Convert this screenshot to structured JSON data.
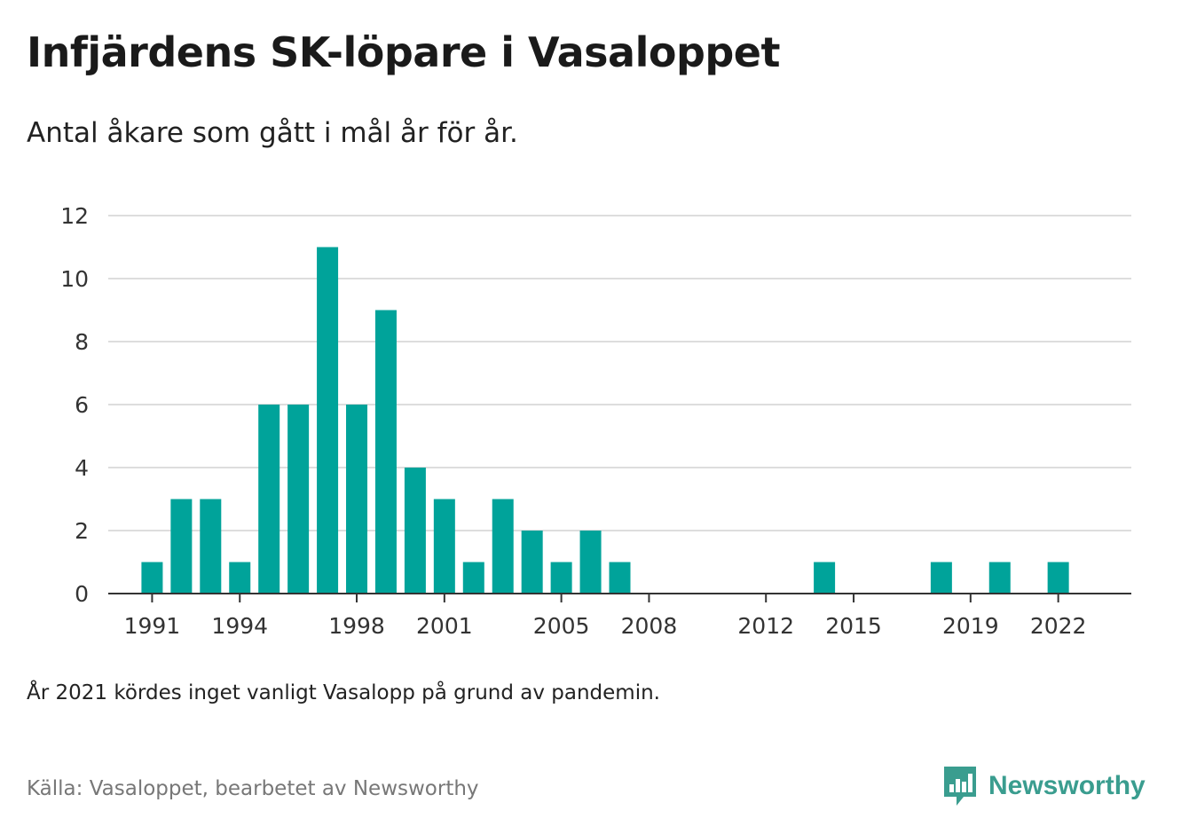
{
  "title": "Infjärdens SK-löpare i Vasaloppet",
  "subtitle": "Antal åkare som gått i mål år för år.",
  "note": "År 2021 kördes inget vanligt Vasalopp på grund av pandemin.",
  "source": "Källa: Vasaloppet, bearbetet av Newsworthy",
  "brand": {
    "name": "Newsworthy",
    "icon": "newsworthy-logo-icon",
    "color": "#3a9d8f"
  },
  "colors": {
    "bar": "#00a39a",
    "grid": "#dddddd",
    "axis": "#333333"
  },
  "chart_data": {
    "type": "bar",
    "title": "Infjärdens SK-löpare i Vasaloppet",
    "xlabel": "",
    "ylabel": "",
    "ylim": [
      0,
      12
    ],
    "yticks": [
      0,
      2,
      4,
      6,
      8,
      10,
      12
    ],
    "xlim": [
      1989.5,
      2024.5
    ],
    "xticks": [
      1991,
      1994,
      1998,
      2001,
      2005,
      2008,
      2012,
      2015,
      2019,
      2022
    ],
    "grid": true,
    "legend": "none",
    "x": [
      1991,
      1992,
      1993,
      1994,
      1995,
      1996,
      1997,
      1998,
      1999,
      2000,
      2001,
      2002,
      2003,
      2004,
      2005,
      2006,
      2007,
      2014,
      2018,
      2020,
      2022
    ],
    "values": [
      1,
      3,
      3,
      1,
      6,
      6,
      11,
      6,
      9,
      4,
      3,
      1,
      3,
      2,
      1,
      2,
      1,
      1,
      1,
      1,
      1
    ]
  }
}
